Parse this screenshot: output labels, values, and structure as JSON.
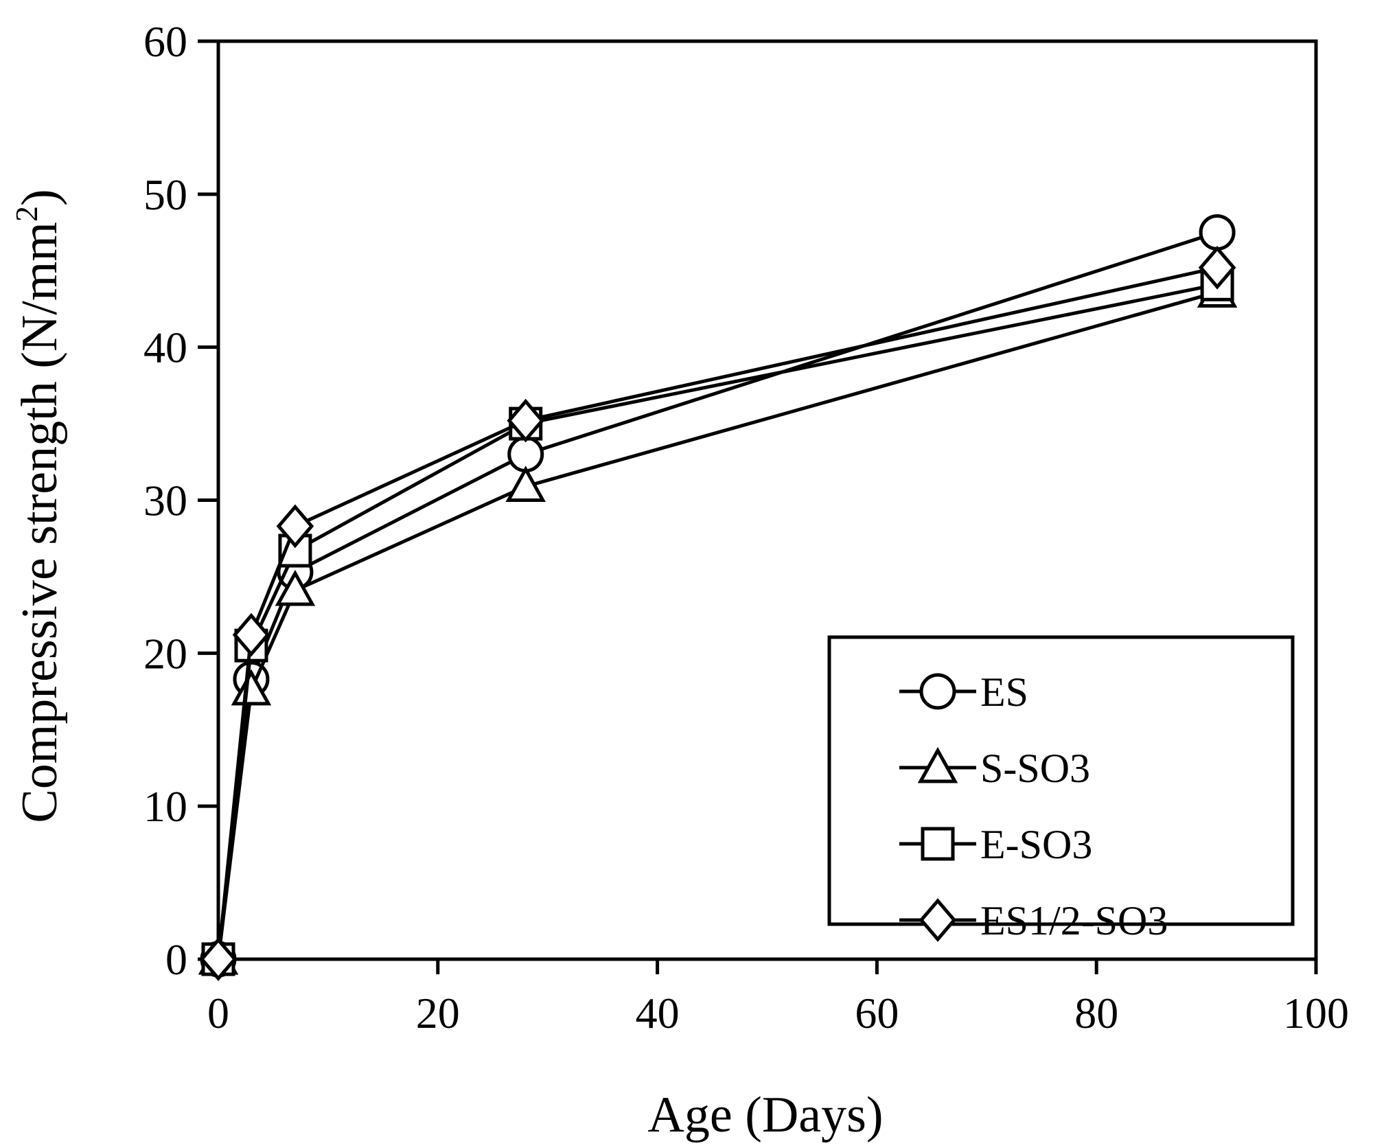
{
  "chart_data": {
    "type": "line",
    "title": "",
    "xlabel": "Age (Days)",
    "ylabel": "Compressive strength (N/mm",
    "ylabel_superscript": "2",
    "ylabel_close": ")",
    "xlim": [
      0,
      100
    ],
    "ylim": [
      0,
      60
    ],
    "xticks": [
      0,
      20,
      40,
      60,
      80,
      100
    ],
    "yticks": [
      0,
      10,
      20,
      30,
      40,
      50,
      60
    ],
    "xtick_labels": [
      "0",
      "20",
      "40",
      "60",
      "80",
      "100"
    ],
    "ytick_labels": [
      "0",
      "10",
      "20",
      "30",
      "40",
      "50",
      "60"
    ],
    "grid": false,
    "legend_position": "bottom-right",
    "x": [
      0,
      3,
      7,
      28,
      91
    ],
    "series": [
      {
        "name": "ES",
        "marker": "circle",
        "values": [
          0,
          18.3,
          25.3,
          33.0,
          47.5
        ]
      },
      {
        "name": "S-SO3",
        "marker": "triangle",
        "values": [
          0,
          17.6,
          24.1,
          30.9,
          43.6
        ]
      },
      {
        "name": "E-SO3",
        "marker": "square",
        "values": [
          0,
          20.5,
          26.7,
          35.0,
          44.1
        ]
      },
      {
        "name": "ES1/2-SO3",
        "marker": "diamond",
        "values": [
          0,
          21.2,
          28.3,
          35.2,
          45.2
        ]
      }
    ],
    "colors": {
      "line": "#000000",
      "marker_fill": "#ffffff",
      "ylabel": "#4a3000"
    }
  }
}
